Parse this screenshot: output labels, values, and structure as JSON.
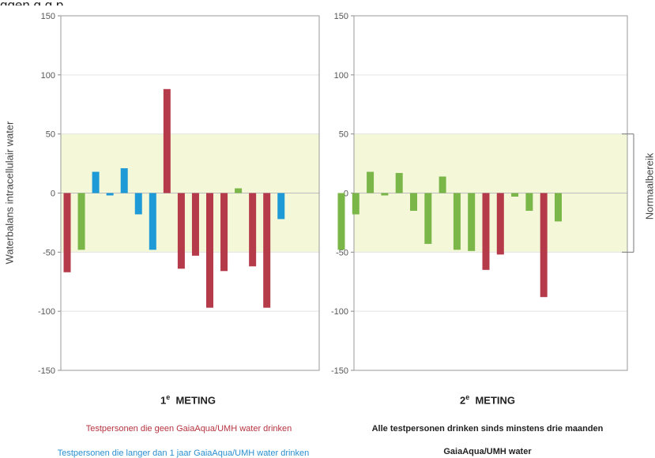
{
  "header_fragment": "ggen g g p",
  "y_axis_label": "Waterbalans intracellulair water",
  "normal_range_label": "Normaalbereik",
  "colors": {
    "red": "#b53a4a",
    "green": "#7ab648",
    "blue": "#1e9ad6",
    "normal_band": "#f4f8d8"
  },
  "chart_data": [
    {
      "type": "bar",
      "title_prefix": "1",
      "title_sup": "e",
      "title_suffix": "METING",
      "ylim": [
        -150,
        150
      ],
      "yticks": [
        150,
        100,
        50,
        0,
        -50,
        -100,
        -150
      ],
      "normal_band": [
        -50,
        50
      ],
      "bars": [
        {
          "value": -67,
          "group": "red"
        },
        {
          "value": -48,
          "group": "green"
        },
        {
          "value": 18,
          "group": "blue"
        },
        {
          "value": -2,
          "group": "blue"
        },
        {
          "value": 21,
          "group": "blue"
        },
        {
          "value": -18,
          "group": "blue"
        },
        {
          "value": -48,
          "group": "blue"
        },
        {
          "value": 88,
          "group": "red"
        },
        {
          "value": -64,
          "group": "red"
        },
        {
          "value": -53,
          "group": "red"
        },
        {
          "value": -97,
          "group": "red"
        },
        {
          "value": -66,
          "group": "red"
        },
        {
          "value": 4,
          "group": "green"
        },
        {
          "value": -62,
          "group": "red"
        },
        {
          "value": -97,
          "group": "red"
        },
        {
          "value": -22,
          "group": "blue"
        }
      ]
    },
    {
      "type": "bar",
      "title_prefix": "2",
      "title_sup": "e",
      "title_suffix": "METING",
      "ylim": [
        -150,
        150
      ],
      "yticks": [
        150,
        100,
        50,
        0,
        -50,
        -100,
        -150
      ],
      "normal_band": [
        -50,
        50
      ],
      "bars": [
        {
          "value": -48,
          "group": "green"
        },
        {
          "value": -18,
          "group": "green"
        },
        {
          "value": 18,
          "group": "green"
        },
        {
          "value": -2,
          "group": "green"
        },
        {
          "value": 17,
          "group": "green"
        },
        {
          "value": -15,
          "group": "green"
        },
        {
          "value": -43,
          "group": "green"
        },
        {
          "value": 14,
          "group": "green"
        },
        {
          "value": -48,
          "group": "green"
        },
        {
          "value": -49,
          "group": "green"
        },
        {
          "value": -65,
          "group": "red"
        },
        {
          "value": -52,
          "group": "red"
        },
        {
          "value": -3,
          "group": "green"
        },
        {
          "value": -15,
          "group": "green"
        },
        {
          "value": -88,
          "group": "red"
        },
        {
          "value": -24,
          "group": "green"
        }
      ]
    }
  ],
  "captions": {
    "left_red": "Testpersonen die geen GaiaAqua/UMH water drinken",
    "left_blue": "Testpersonen die langer dan 1 jaar  GaiaAqua/UMH water drinken",
    "right_line1": "Alle testpersonen drinken sinds minstens  drie maanden",
    "right_line2": "GaiaAqua/UMH water"
  }
}
